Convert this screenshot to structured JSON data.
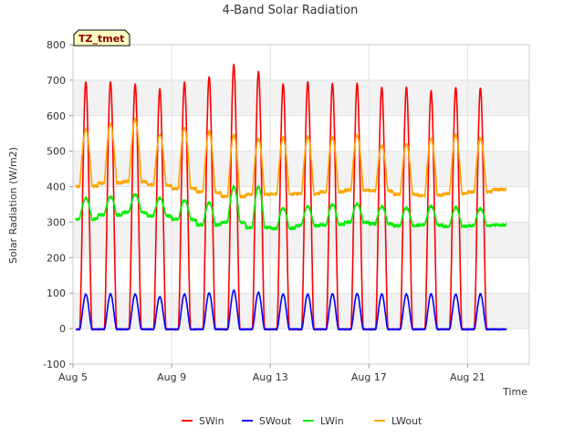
{
  "chart_data": {
    "type": "line",
    "title": "4-Band Solar Radiation",
    "xlabel": "Time",
    "ylabel": "Solar Radiation (W/m2)",
    "badge": "TZ_tmet",
    "ylim": [
      -100,
      800
    ],
    "yticks": [
      -100,
      0,
      100,
      200,
      300,
      400,
      500,
      600,
      700,
      800
    ],
    "xlim": [
      5.0,
      23.5
    ],
    "xticks": [
      {
        "value": 5,
        "label": "Aug 5"
      },
      {
        "value": 9,
        "label": "Aug 9"
      },
      {
        "value": 13,
        "label": "Aug 13"
      },
      {
        "value": 17,
        "label": "Aug 17"
      },
      {
        "value": 21,
        "label": "Aug 21"
      }
    ],
    "x_unit": "day of August",
    "days": [
      5.5,
      6.5,
      7.5,
      8.5,
      9.5,
      10.5,
      11.5,
      12.5,
      13.5,
      14.5,
      15.5,
      16.5,
      17.5,
      18.5,
      19.5,
      20.5,
      21.5,
      22.5
    ],
    "grid": true,
    "alternating_bands": true,
    "legend_position": "bottom",
    "series": [
      {
        "name": "SWin",
        "color": "#ff0000",
        "daily_peak": [
          695,
          695,
          690,
          675,
          695,
          710,
          745,
          725,
          690,
          695,
          690,
          690,
          680,
          680,
          670,
          680,
          678,
          0
        ],
        "night": -2
      },
      {
        "name": "SWout",
        "color": "#0000ff",
        "daily_peak": [
          97,
          97,
          97,
          90,
          97,
          100,
          108,
          102,
          97,
          97,
          98,
          98,
          97,
          97,
          97,
          97,
          97,
          0
        ],
        "night": -2
      },
      {
        "name": "LWin",
        "color": "#00ee00",
        "daily_peak": [
          368,
          372,
          378,
          368,
          362,
          355,
          400,
          400,
          340,
          345,
          350,
          352,
          345,
          340,
          345,
          342,
          338,
          0
        ],
        "night": [
          308,
          320,
          328,
          318,
          308,
          292,
          300,
          285,
          282,
          290,
          292,
          300,
          295,
          290,
          292,
          288,
          290,
          292
        ]
      },
      {
        "name": "LWout",
        "color": "#ffa500",
        "daily_peak": [
          562,
          575,
          590,
          545,
          565,
          555,
          545,
          535,
          538,
          540,
          538,
          545,
          515,
          520,
          535,
          545,
          535,
          0
        ],
        "night": [
          400,
          410,
          415,
          405,
          395,
          385,
          372,
          378,
          380,
          380,
          385,
          390,
          388,
          378,
          375,
          380,
          385,
          392
        ]
      }
    ]
  }
}
